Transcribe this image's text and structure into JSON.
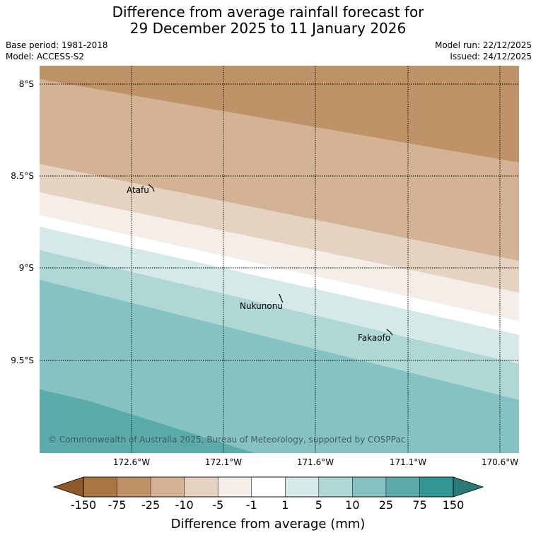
{
  "title": {
    "line1": "Difference from average rainfall forecast for",
    "line2": "29 December 2025 to 11 January 2026"
  },
  "meta": {
    "base_period": "Base period: 1981-2018",
    "model": "Model: ACCESS-S2",
    "model_run": "Model run: 22/12/2025",
    "issued": "Issued: 24/12/2025"
  },
  "map": {
    "lat_ticks": [
      "8°S",
      "8.5°S",
      "9°S",
      "9.5°S"
    ],
    "lon_ticks": [
      "172.6°W",
      "172.1°W",
      "171.6°W",
      "171.1°W",
      "170.6°W"
    ],
    "places": [
      "Atafu",
      "Nukunonu",
      "Fakaofo"
    ],
    "credit": "© Commonwealth of Australia 2025, Bureau of Meteorology, supported by COSPPac"
  },
  "colorbar": {
    "label": "Difference from average (mm)",
    "ticks": [
      "-150",
      "-75",
      "-25",
      "-10",
      "-5",
      "-1",
      "1",
      "5",
      "10",
      "25",
      "75",
      "150"
    ],
    "colors": [
      "#a97540",
      "#c09267",
      "#d3b394",
      "#e5d2c1",
      "#f5ede8",
      "#ffffff",
      "#d5e9e8",
      "#aed7d6",
      "#85c2c1",
      "#5aabaa",
      "#329896"
    ],
    "under_color": "#8e5a2a",
    "over_color": "#2a7a77"
  }
}
